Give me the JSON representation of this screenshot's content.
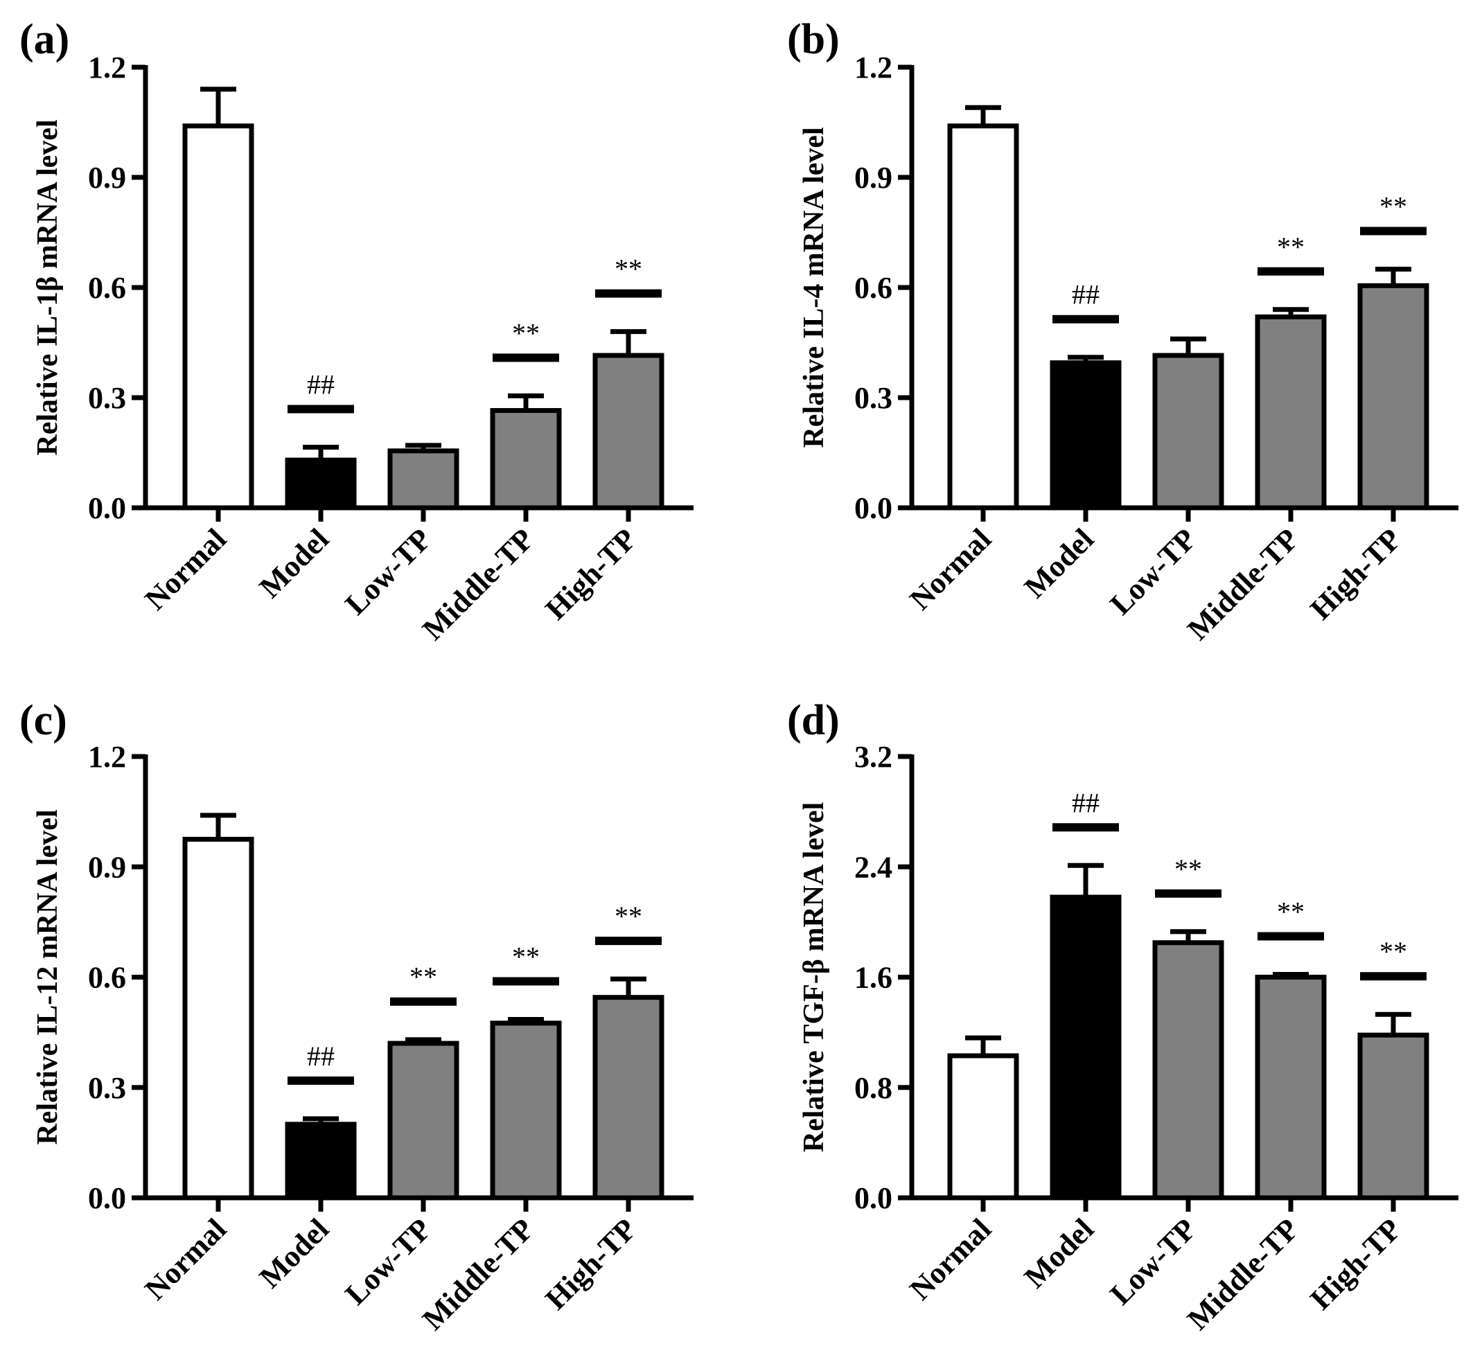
{
  "colors": {
    "normal": "#ffffff",
    "model": "#000000",
    "treated": "#808080",
    "stroke": "#000000"
  },
  "chart_data": [
    {
      "type": "bar",
      "label": "(a)",
      "ylabel": "Relative IL-1β mRNA level",
      "ylim": [
        0,
        1.2
      ],
      "yticks": [
        "0.0",
        "0.3",
        "0.6",
        "0.9",
        "1.2"
      ],
      "categories": [
        "Normal",
        "Model",
        "Low-TP",
        "Middle-TP",
        "High-TP"
      ],
      "values": [
        1.04,
        0.13,
        0.155,
        0.265,
        0.415
      ],
      "errors": [
        0.1,
        0.035,
        0.015,
        0.04,
        0.065
      ],
      "fills": [
        "normal",
        "model",
        "treated",
        "treated",
        "treated"
      ],
      "significance": [
        "",
        "##",
        "",
        "**",
        "**"
      ]
    },
    {
      "type": "bar",
      "label": "(b)",
      "ylabel": "Relative IL-4 mRNA level",
      "ylim": [
        0,
        1.2
      ],
      "yticks": [
        "0.0",
        "0.3",
        "0.6",
        "0.9",
        "1.2"
      ],
      "categories": [
        "Normal",
        "Model",
        "Low-TP",
        "Middle-TP",
        "High-TP"
      ],
      "values": [
        1.04,
        0.395,
        0.415,
        0.52,
        0.605
      ],
      "errors": [
        0.05,
        0.015,
        0.045,
        0.02,
        0.045
      ],
      "fills": [
        "normal",
        "model",
        "treated",
        "treated",
        "treated"
      ],
      "significance": [
        "",
        "##",
        "",
        "**",
        "**"
      ]
    },
    {
      "type": "bar",
      "label": "(c)",
      "ylabel": "Relative IL-12 mRNA level",
      "ylim": [
        0,
        1.2
      ],
      "yticks": [
        "0.0",
        "0.3",
        "0.6",
        "0.9",
        "1.2"
      ],
      "categories": [
        "Normal",
        "Model",
        "Low-TP",
        "Middle-TP",
        "High-TP"
      ],
      "values": [
        0.975,
        0.2,
        0.42,
        0.475,
        0.545
      ],
      "errors": [
        0.065,
        0.015,
        0.01,
        0.01,
        0.05
      ],
      "fills": [
        "normal",
        "model",
        "treated",
        "treated",
        "treated"
      ],
      "significance": [
        "",
        "##",
        "**",
        "**",
        "**"
      ]
    },
    {
      "type": "bar",
      "label": "(d)",
      "ylabel": "Relative TGF-β mRNA level",
      "ylim": [
        0,
        3.2
      ],
      "yticks": [
        "0.0",
        "0.8",
        "1.6",
        "2.4",
        "3.2"
      ],
      "categories": [
        "Normal",
        "Model",
        "Low-TP",
        "Middle-TP",
        "High-TP"
      ],
      "values": [
        1.03,
        2.18,
        1.85,
        1.6,
        1.18
      ],
      "errors": [
        0.13,
        0.23,
        0.08,
        0.02,
        0.15
      ],
      "fills": [
        "normal",
        "model",
        "treated",
        "treated",
        "treated"
      ],
      "significance": [
        "",
        "##",
        "**",
        "**",
        "**"
      ]
    }
  ]
}
